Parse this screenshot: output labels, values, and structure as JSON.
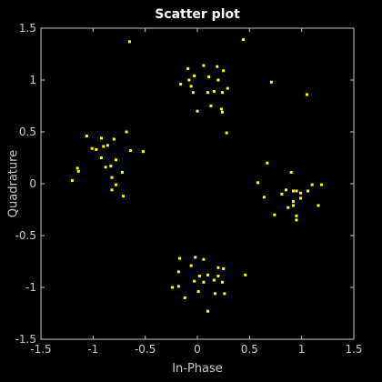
{
  "chart_data": {
    "type": "scatter",
    "title": "Scatter plot",
    "xlabel": "In-Phase",
    "ylabel": "Quadrature",
    "color": "#ffff00",
    "xlim": [
      -1.5,
      1.5
    ],
    "ylim": [
      -1.5,
      1.5
    ],
    "xticks": [
      -1.5,
      -1,
      -0.5,
      0,
      0.5,
      1,
      1.5
    ],
    "yticks": [
      -1.5,
      -1,
      -0.5,
      0,
      0.5,
      1,
      1.5
    ],
    "x": [
      -0.65,
      0.44,
      -0.09,
      0.06,
      0.19,
      0.25,
      -0.03,
      -0.08,
      0.11,
      0.2,
      0.29,
      -0.06,
      -0.04,
      0.1,
      0.16,
      0.24,
      -0.16,
      0.13,
      0.0,
      0.23,
      0.24,
      0.28,
      0.71,
      1.05,
      -1.06,
      -0.92,
      -0.68,
      -0.8,
      -1.01,
      -0.97,
      -0.9,
      -0.86,
      -0.64,
      -0.52,
      -0.92,
      -0.78,
      -0.83,
      -0.88,
      -1.15,
      -1.14,
      -0.72,
      -0.82,
      -1.2,
      -0.78,
      -0.82,
      -0.71,
      0.67,
      0.9,
      0.58,
      1.1,
      1.19,
      0.85,
      0.92,
      0.95,
      0.99,
      1.06,
      0.64,
      0.92,
      0.99,
      0.92,
      1.16,
      0.74,
      0.95,
      0.95,
      0.87,
      0.81,
      -0.17,
      -0.02,
      0.06,
      -0.06,
      0.2,
      0.25,
      -0.18,
      0.02,
      0.1,
      0.2,
      0.46,
      -0.03,
      0.06,
      0.16,
      0.24,
      -0.24,
      -0.18,
      0.01,
      0.17,
      0.26,
      -0.12,
      0.1
    ],
    "values": [
      1.37,
      1.39,
      1.11,
      1.14,
      1.13,
      1.09,
      1.04,
      1.0,
      1.03,
      1.0,
      0.92,
      0.94,
      0.88,
      0.88,
      0.89,
      0.88,
      0.96,
      0.75,
      0.7,
      0.72,
      0.69,
      0.49,
      0.98,
      0.86,
      0.46,
      0.44,
      0.5,
      0.43,
      0.34,
      0.33,
      0.36,
      0.37,
      0.32,
      0.31,
      0.25,
      0.23,
      0.17,
      0.16,
      0.15,
      0.12,
      0.11,
      0.06,
      0.03,
      -0.01,
      -0.06,
      -0.12,
      0.2,
      0.11,
      0.01,
      -0.01,
      -0.01,
      -0.06,
      -0.07,
      -0.07,
      -0.09,
      -0.07,
      -0.13,
      -0.17,
      -0.14,
      -0.21,
      -0.21,
      -0.3,
      -0.31,
      -0.35,
      -0.23,
      -0.1,
      -0.72,
      -0.71,
      -0.73,
      -0.79,
      -0.81,
      -0.82,
      -0.85,
      -0.89,
      -0.88,
      -0.89,
      -0.88,
      -0.94,
      -0.95,
      -0.93,
      -0.95,
      -1.0,
      -0.99,
      -1.04,
      -1.06,
      -1.06,
      -1.1,
      -1.23
    ]
  }
}
